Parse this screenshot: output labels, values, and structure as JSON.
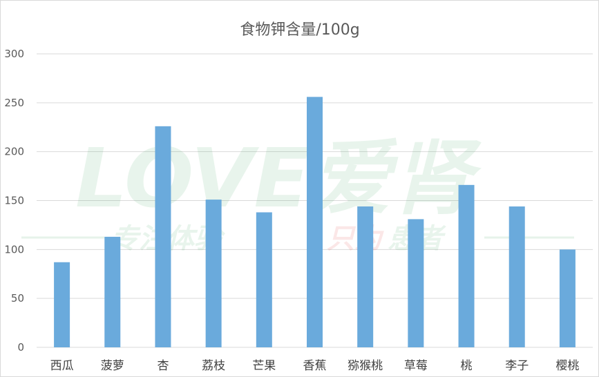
{
  "chart_data": {
    "type": "bar",
    "title": "食物钾含量/100g",
    "xlabel": "",
    "ylabel": "",
    "ylim": [
      0,
      300
    ],
    "yticks": [
      0,
      50,
      100,
      150,
      200,
      250,
      300
    ],
    "grid": true,
    "legend": "none",
    "bar_color": "#6aaadc",
    "categories": [
      "西瓜",
      "菠萝",
      "杏",
      "荔枝",
      "芒果",
      "香蕉",
      "猕猴桃",
      "草莓",
      "桃",
      "李子",
      "樱桃"
    ],
    "values": [
      87,
      113,
      226,
      151,
      138,
      256,
      144,
      131,
      166,
      144,
      100
    ]
  },
  "watermark": {
    "brand": "LOVE爱肾",
    "slogan_left": "专注体验",
    "slogan_mid": "只为",
    "slogan_right": "患者",
    "color_main": "#2e9e4f",
    "color_accent": "#e02020"
  }
}
